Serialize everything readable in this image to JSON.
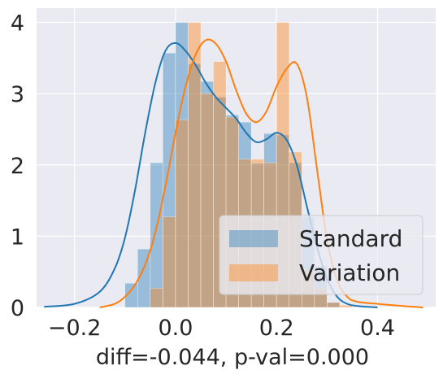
{
  "chart_data": {
    "type": "histogram",
    "xlabel": "diff=-0.044, p-val=0.000",
    "ylabel": "",
    "title": "",
    "xlim": [
      -0.275,
      0.515
    ],
    "ylim": [
      0,
      4.2
    ],
    "xticks": [
      -0.2,
      0.0,
      0.2,
      0.4
    ],
    "xtick_labels": [
      "−0.2",
      "0.0",
      "0.2",
      "0.4"
    ],
    "yticks": [
      0,
      1,
      2,
      3,
      4
    ],
    "ytick_labels": [
      "0",
      "1",
      "2",
      "3",
      "4"
    ],
    "grid": true,
    "legend_position": "lower right",
    "series": [
      {
        "name": "Standard",
        "color": "#1f77b4",
        "bin_edges": [
          -0.1,
          -0.075,
          -0.05,
          -0.025,
          0.0,
          0.025,
          0.05,
          0.075,
          0.1,
          0.125,
          0.15,
          0.175,
          0.2,
          0.225,
          0.25,
          0.275,
          0.3,
          0.325
        ],
        "densities": [
          0.34,
          0.82,
          2.03,
          3.57,
          4.0,
          3.42,
          3.17,
          2.95,
          2.7,
          2.6,
          2.02,
          2.44,
          2.42,
          2.03,
          1.27,
          0.58,
          0.07
        ],
        "kde_x": [
          -0.26,
          -0.2,
          -0.15,
          -0.12,
          -0.1,
          -0.08,
          -0.06,
          -0.04,
          -0.02,
          0.0,
          0.02,
          0.04,
          0.06,
          0.08,
          0.1,
          0.12,
          0.14,
          0.16,
          0.18,
          0.2,
          0.22,
          0.24,
          0.26,
          0.28,
          0.3,
          0.32,
          0.34,
          0.36,
          0.4
        ],
        "kde_y": [
          0.01,
          0.05,
          0.22,
          0.55,
          0.98,
          1.65,
          2.45,
          3.15,
          3.6,
          3.71,
          3.6,
          3.4,
          3.15,
          2.95,
          2.8,
          2.65,
          2.45,
          2.32,
          2.36,
          2.45,
          2.35,
          2.0,
          1.42,
          0.85,
          0.4,
          0.15,
          0.05,
          0.02,
          0.0
        ]
      },
      {
        "name": "Variation",
        "color": "#ff7f0e",
        "bin_edges": [
          -0.05,
          -0.025,
          0.0,
          0.025,
          0.05,
          0.075,
          0.1,
          0.125,
          0.15,
          0.175,
          0.2,
          0.225,
          0.25,
          0.275,
          0.3,
          0.325,
          0.35
        ],
        "densities": [
          0.27,
          1.27,
          2.63,
          4.0,
          3.0,
          3.45,
          2.67,
          2.08,
          2.08,
          2.03,
          4.0,
          2.18,
          0.53,
          0.27,
          0.07,
          0.03
        ],
        "kde_x": [
          -0.15,
          -0.12,
          -0.1,
          -0.08,
          -0.06,
          -0.04,
          -0.02,
          0.0,
          0.02,
          0.04,
          0.06,
          0.08,
          0.1,
          0.12,
          0.14,
          0.16,
          0.18,
          0.2,
          0.22,
          0.24,
          0.26,
          0.28,
          0.3,
          0.32,
          0.34,
          0.36,
          0.4,
          0.45,
          0.49
        ],
        "kde_y": [
          0.0,
          0.05,
          0.15,
          0.32,
          0.6,
          1.05,
          1.7,
          2.45,
          3.1,
          3.55,
          3.75,
          3.7,
          3.45,
          3.05,
          2.72,
          2.6,
          2.75,
          3.1,
          3.35,
          3.42,
          2.95,
          1.95,
          0.95,
          0.38,
          0.15,
          0.08,
          0.05,
          0.02,
          0.0
        ]
      }
    ]
  }
}
